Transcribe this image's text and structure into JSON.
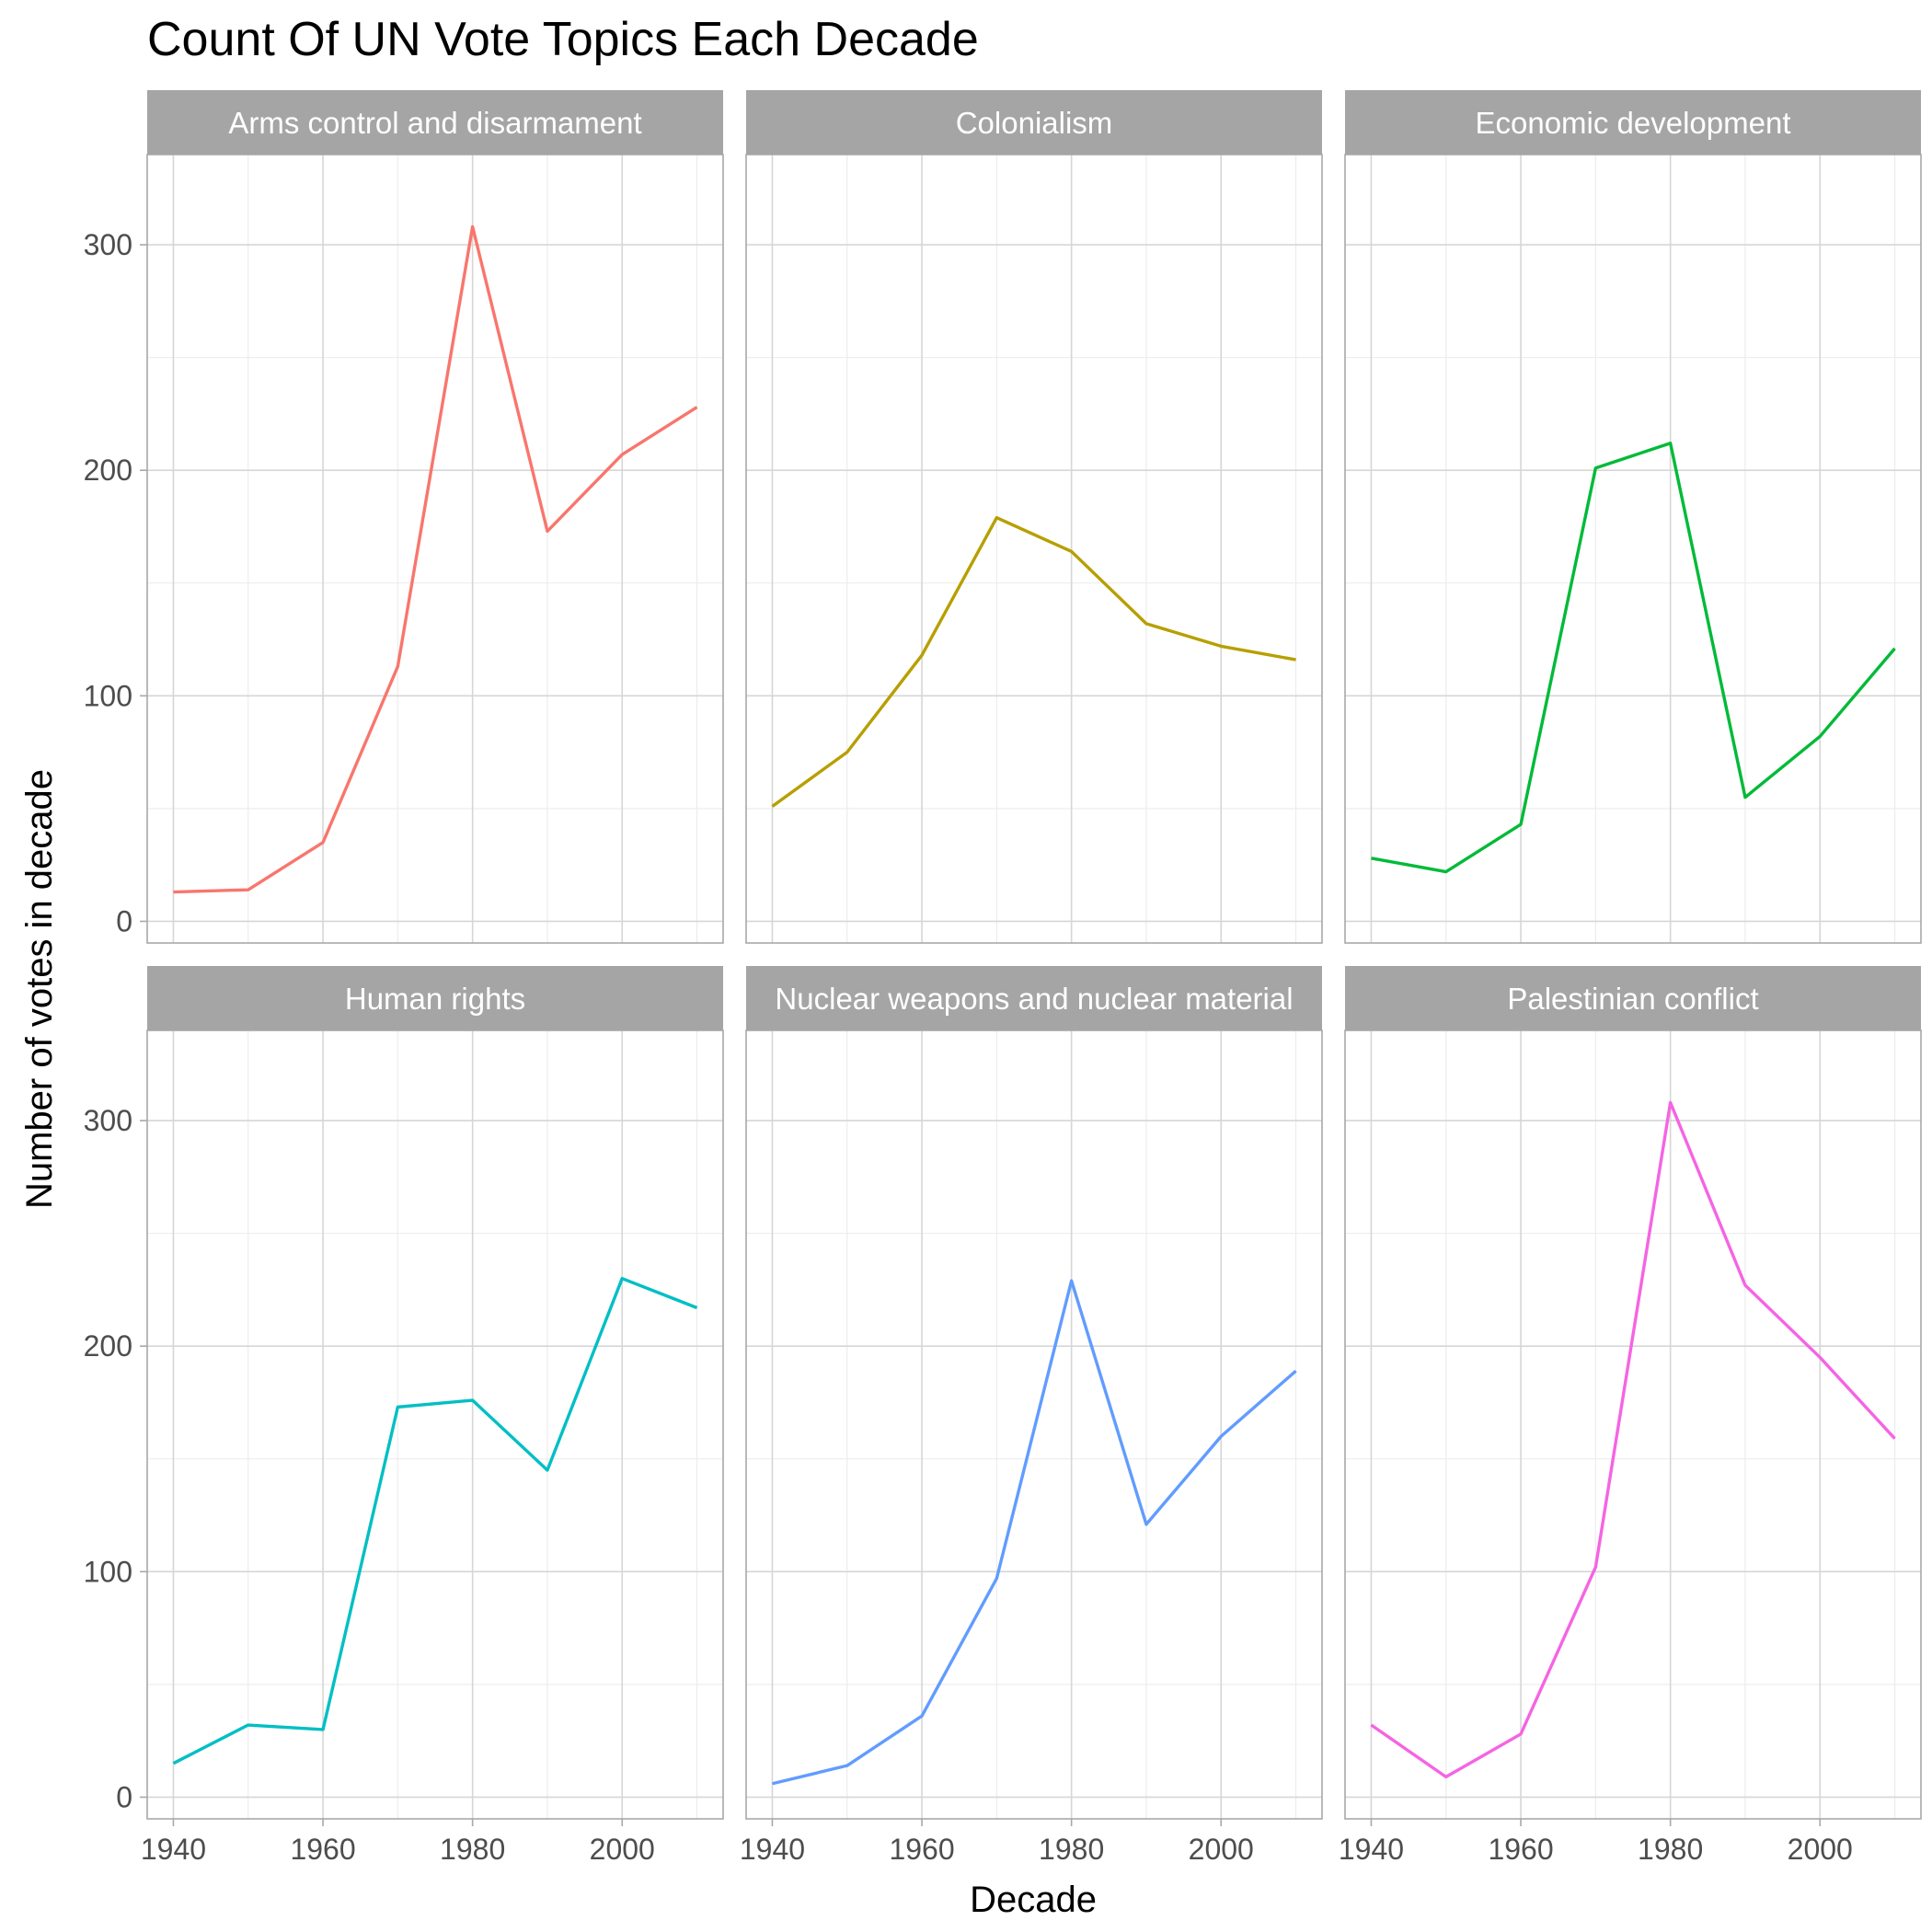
{
  "chart_data": {
    "type": "line",
    "title": "Count Of UN Vote Topics Each Decade",
    "xlabel": "Decade",
    "ylabel": "Number of votes in decade",
    "layout": "facet-grid 2x3",
    "grid": true,
    "legend": "none",
    "xlim": [
      1940,
      2010
    ],
    "ylim": [
      0,
      308
    ],
    "x_ticks": [
      1940,
      1960,
      1980,
      2000
    ],
    "y_ticks": [
      0,
      100,
      200,
      300
    ],
    "x": [
      1940,
      1950,
      1960,
      1970,
      1980,
      1990,
      2000,
      2010
    ],
    "series": [
      {
        "name": "Arms control and disarmament",
        "color": "#F8766D",
        "values": [
          13,
          14,
          35,
          113,
          308,
          173,
          207,
          228
        ]
      },
      {
        "name": "Colonialism",
        "color": "#B79F00",
        "values": [
          51,
          75,
          118,
          179,
          164,
          132,
          122,
          116
        ]
      },
      {
        "name": "Economic development",
        "color": "#00BA38",
        "values": [
          28,
          22,
          43,
          201,
          212,
          55,
          82,
          121
        ]
      },
      {
        "name": "Human rights",
        "color": "#00BFC4",
        "values": [
          15,
          32,
          30,
          173,
          176,
          145,
          230,
          217
        ]
      },
      {
        "name": "Nuclear weapons and nuclear material",
        "color": "#619CFF",
        "values": [
          6,
          14,
          36,
          97,
          229,
          121,
          160,
          189
        ]
      },
      {
        "name": "Palestinian conflict",
        "color": "#F564E3",
        "values": [
          32,
          9,
          28,
          102,
          308,
          227,
          195,
          159
        ]
      }
    ]
  }
}
